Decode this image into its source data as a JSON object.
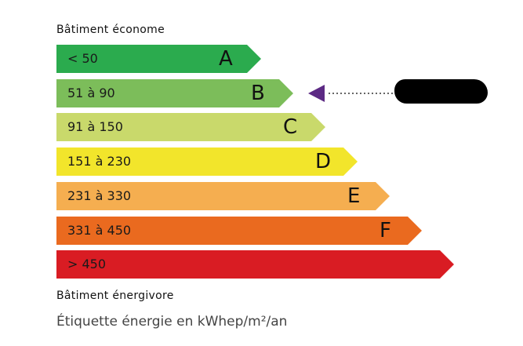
{
  "top_label": "Bâtiment économe",
  "bottom_label": "Bâtiment énergivore",
  "unit_label": "Étiquette énergie en kWhep/m²/an",
  "classes": [
    {
      "range": "< 50",
      "letter": "A",
      "color": "#2bab4e"
    },
    {
      "range": "51 à 90",
      "letter": "B",
      "color": "#7cbd5a"
    },
    {
      "range": "91 à 150",
      "letter": "C",
      "color": "#c9d96b"
    },
    {
      "range": "151 à 230",
      "letter": "D",
      "color": "#f2e52b"
    },
    {
      "range": "231 à 330",
      "letter": "E",
      "color": "#f5ae50"
    },
    {
      "range": "331 à 450",
      "letter": "F",
      "color": "#ea6a1f"
    },
    {
      "range": "> 450",
      "letter": "",
      "color": "#d91c23"
    }
  ],
  "indicator": {
    "class": "B",
    "color": "#5c2a84",
    "value_redacted": true
  }
}
